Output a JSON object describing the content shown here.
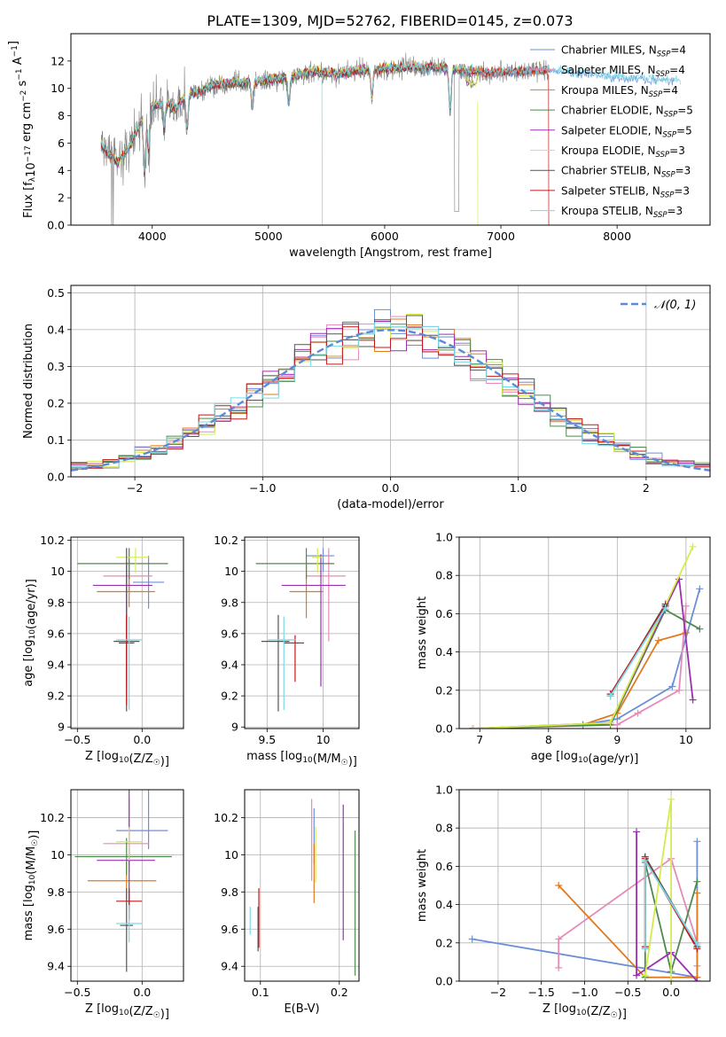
{
  "figure_title": "PLATE=1309, MJD=52762, FIBERID=0145, z=0.073",
  "series_styles": [
    {
      "name": "Chabrier MILES",
      "nssp": "4",
      "color": "#6b8fd6"
    },
    {
      "name": "Salpeter MILES",
      "nssp": "4",
      "color": "#e68ab8"
    },
    {
      "name": "Kroupa MILES",
      "nssp": "4",
      "color": "#e07a1f"
    },
    {
      "name": "Chabrier ELODIE",
      "nssp": "5",
      "color": "#4e8a4e"
    },
    {
      "name": "Salpeter ELODIE",
      "nssp": "5",
      "color": "#9b30b0"
    },
    {
      "name": "Kroupa ELODIE",
      "nssp": "3",
      "color": "#d4ec4a"
    },
    {
      "name": "Chabrier STELIB",
      "nssp": "3",
      "color": "#555555"
    },
    {
      "name": "Salpeter STELIB",
      "nssp": "3",
      "color": "#c01a1a"
    },
    {
      "name": "Kroupa STELIB",
      "nssp": "3",
      "color": "#7ad9e6"
    }
  ],
  "chart_data": [
    {
      "id": "spectrum",
      "type": "line",
      "xlabel": "wavelength [Angstrom, rest frame]",
      "ylabel": "Flux [f_λ10^-17 erg cm^-2 s^-1 A^-1]",
      "xlim": [
        3300,
        8800
      ],
      "ylim": [
        0,
        14
      ],
      "xticks": [
        4000,
        5000,
        6000,
        7000,
        8000
      ],
      "yticks": [
        0,
        2,
        4,
        6,
        8,
        10,
        12
      ],
      "legend_position": "right",
      "data_color": "#808080",
      "continuum": {
        "x": [
          3560,
          3620,
          3700,
          3800,
          3900,
          4000,
          4100,
          4200,
          4300,
          4400,
          4500,
          4600,
          4800,
          5000,
          5200,
          5400,
          5600,
          5800,
          6000,
          6200,
          6400,
          6600,
          6800,
          7000,
          7200,
          7400,
          7600,
          7800,
          8000,
          8200,
          8400,
          8600,
          8800
        ],
        "y": [
          5.8,
          5.2,
          4.6,
          5.6,
          7.5,
          8.6,
          9.0,
          8.4,
          9.6,
          9.6,
          10.2,
          10.3,
          10.4,
          10.6,
          10.8,
          11.2,
          11.0,
          11.3,
          11.4,
          11.5,
          11.5,
          11.4,
          11.1,
          11.2,
          11.2,
          11.3,
          11.1,
          11.0,
          10.8,
          10.7,
          10.6,
          10.5,
          10.4
        ]
      }
    },
    {
      "id": "residuals",
      "type": "histogram",
      "xlabel": "(data-model)/error",
      "ylabel": "Normed distribution",
      "xlim": [
        -2.5,
        2.5
      ],
      "ylim": [
        0,
        0.52
      ],
      "xticks": [
        -2,
        -1,
        0,
        1,
        2
      ],
      "yticks": [
        0.0,
        0.1,
        0.2,
        0.3,
        0.4,
        0.5
      ],
      "grid": true,
      "legend_position": "top-right",
      "reference_label": "𝒩(0, 1)",
      "reference_color": "#5b8bd8"
    },
    {
      "id": "age_vs_Z",
      "type": "errorbar",
      "xlabel": "Z [log10(Z/Z☉)]",
      "ylabel": "age  [log10(age/yr)]",
      "xlim": [
        -0.55,
        0.32
      ],
      "ylim": [
        8.99,
        10.22
      ],
      "xticks": [
        -0.5,
        0.0
      ],
      "yticks": [
        9.0,
        9.2,
        9.4,
        9.6,
        9.8,
        10.0,
        10.2
      ],
      "grid": true,
      "points": [
        {
          "s": 0,
          "x": 0.05,
          "y": 9.93,
          "xerr": [
            0.12,
            0.12
          ],
          "yerr": [
            0.17,
            0.17
          ]
        },
        {
          "s": 1,
          "x": -0.1,
          "y": 9.97,
          "xerr": [
            0.2,
            0.18
          ],
          "yerr": [
            0.1,
            0.1
          ]
        },
        {
          "s": 2,
          "x": -0.1,
          "y": 9.87,
          "xerr": [
            0.25,
            0.2
          ],
          "yerr": [
            0.1,
            0.1
          ]
        },
        {
          "s": 3,
          "x": -0.1,
          "y": 10.05,
          "xerr": [
            0.4,
            0.3
          ],
          "yerr": [
            0.1,
            0.1
          ]
        },
        {
          "s": 4,
          "x": -0.12,
          "y": 9.91,
          "xerr": [
            0.26,
            0.2
          ],
          "yerr": [
            0.65,
            0.15
          ]
        },
        {
          "s": 5,
          "x": -0.05,
          "y": 10.09,
          "xerr": [
            0.15,
            0.1
          ],
          "yerr": [
            0.1,
            0.06
          ]
        },
        {
          "s": 6,
          "x": -0.12,
          "y": 9.55,
          "xerr": [
            0.1,
            0.1
          ],
          "yerr": [
            0.45,
            0.6
          ]
        },
        {
          "s": 7,
          "x": -0.12,
          "y": 9.54,
          "xerr": [
            0.06,
            0.06
          ],
          "yerr": [
            0.4,
            0.18
          ]
        },
        {
          "s": 8,
          "x": -0.1,
          "y": 9.56,
          "xerr": [
            0.1,
            0.1
          ],
          "yerr": [
            0.45,
            0.15
          ]
        }
      ]
    },
    {
      "id": "age_vs_mass",
      "type": "errorbar",
      "xlabel": "mass [log10(M/M☉)]",
      "ylabel": "",
      "xlim": [
        9.3,
        10.32
      ],
      "ylim": [
        8.99,
        10.22
      ],
      "xticks": [
        9.5,
        10.0
      ],
      "yticks": [
        9.0,
        9.2,
        9.4,
        9.6,
        9.8,
        10.0,
        10.2
      ],
      "grid": true,
      "points": [
        {
          "s": 0,
          "x": 10.0,
          "y": 10.1,
          "xerr": [
            0.15,
            0.1
          ],
          "yerr": [
            0.1,
            0.05
          ]
        },
        {
          "s": 1,
          "x": 10.05,
          "y": 9.97,
          "xerr": [
            0.2,
            0.15
          ],
          "yerr": [
            0.42,
            0.18
          ]
        },
        {
          "s": 2,
          "x": 9.85,
          "y": 9.87,
          "xerr": [
            0.15,
            0.15
          ],
          "yerr": [
            0.17,
            0.17
          ]
        },
        {
          "s": 3,
          "x": 9.85,
          "y": 10.05,
          "xerr": [
            0.45,
            0.25
          ],
          "yerr": [
            0.1,
            0.1
          ]
        },
        {
          "s": 4,
          "x": 9.98,
          "y": 9.91,
          "xerr": [
            0.35,
            0.22
          ],
          "yerr": [
            0.65,
            0.2
          ]
        },
        {
          "s": 5,
          "x": 9.95,
          "y": 10.09,
          "xerr": [
            0.05,
            0.05
          ],
          "yerr": [
            0.1,
            0.06
          ]
        },
        {
          "s": 6,
          "x": 9.6,
          "y": 9.55,
          "xerr": [
            0.15,
            0.1
          ],
          "yerr": [
            0.45,
            0.17
          ]
        },
        {
          "s": 7,
          "x": 9.75,
          "y": 9.54,
          "xerr": [
            0.1,
            0.08
          ],
          "yerr": [
            0.25,
            0.05
          ]
        },
        {
          "s": 8,
          "x": 9.65,
          "y": 9.56,
          "xerr": [
            0.15,
            0.1
          ],
          "yerr": [
            0.45,
            0.15
          ]
        }
      ]
    },
    {
      "id": "massweight_vs_age",
      "type": "line",
      "xlabel": "age  [log10(age/yr)]",
      "ylabel": "mass weight",
      "xlim": [
        6.7,
        10.35
      ],
      "ylim": [
        0,
        1
      ],
      "xticks": [
        7,
        8,
        9,
        10
      ],
      "yticks": [
        0.0,
        0.2,
        0.4,
        0.6,
        0.8,
        1.0
      ],
      "grid": true,
      "series": [
        {
          "s": 0,
          "x": [
            6.9,
            8.5,
            9.0,
            9.8,
            10.2
          ],
          "y": [
            0.0,
            0.02,
            0.05,
            0.22,
            0.73
          ]
        },
        {
          "s": 1,
          "x": [
            6.9,
            9.0,
            9.3,
            9.9,
            10.0
          ],
          "y": [
            0.0,
            0.02,
            0.08,
            0.2,
            0.64
          ]
        },
        {
          "s": 2,
          "x": [
            6.9,
            8.5,
            9.0,
            9.6,
            10.0
          ],
          "y": [
            0.0,
            0.02,
            0.08,
            0.46,
            0.5
          ]
        },
        {
          "s": 3,
          "x": [
            6.9,
            8.9,
            9.7,
            10.2
          ],
          "y": [
            0.0,
            0.02,
            0.62,
            0.52
          ]
        },
        {
          "s": 4,
          "x": [
            6.9,
            8.9,
            9.9,
            10.1
          ],
          "y": [
            0.0,
            0.03,
            0.78,
            0.15
          ]
        },
        {
          "s": 5,
          "x": [
            6.9,
            8.9,
            10.1
          ],
          "y": [
            0.0,
            0.03,
            0.95
          ]
        },
        {
          "s": 6,
          "x": [
            8.9,
            9.7
          ],
          "y": [
            0.17,
            0.65
          ]
        },
        {
          "s": 7,
          "x": [
            8.9,
            9.7
          ],
          "y": [
            0.18,
            0.64
          ]
        },
        {
          "s": 8,
          "x": [
            8.9,
            9.7
          ],
          "y": [
            0.17,
            0.63
          ]
        }
      ]
    },
    {
      "id": "mass_vs_Z",
      "type": "errorbar",
      "xlabel": "Z [log10(Z/Z☉)]",
      "ylabel": "mass [log10(M/M☉)]",
      "xlim": [
        -0.55,
        0.32
      ],
      "ylim": [
        9.32,
        10.35
      ],
      "xticks": [
        -0.5,
        0.0
      ],
      "yticks": [
        9.4,
        9.6,
        9.8,
        10.0,
        10.2
      ],
      "grid": true,
      "points": [
        {
          "s": 0,
          "x": 0.05,
          "y": 10.13,
          "xerr": [
            0.25,
            0.15
          ],
          "yerr": [
            0.1,
            0.36
          ]
        },
        {
          "s": 1,
          "x": -0.1,
          "y": 10.06,
          "xerr": [
            0.2,
            0.15
          ],
          "yerr": [
            0.15,
            0.24
          ]
        },
        {
          "s": 2,
          "x": -0.12,
          "y": 9.86,
          "xerr": [
            0.3,
            0.23
          ],
          "yerr": [
            0.1,
            0.1
          ]
        },
        {
          "s": 3,
          "x": -0.12,
          "y": 9.99,
          "xerr": [
            0.4,
            0.35
          ],
          "yerr": [
            0.1,
            0.1
          ]
        },
        {
          "s": 4,
          "x": -0.1,
          "y": 9.97,
          "xerr": [
            0.25,
            0.2
          ],
          "yerr": [
            0.27,
            0.43
          ]
        },
        {
          "s": 5,
          "x": -0.1,
          "y": 10.07,
          "xerr": [
            0.1,
            0.1
          ],
          "yerr": [
            0.1,
            0.08
          ]
        },
        {
          "s": 6,
          "x": -0.12,
          "y": 9.62,
          "xerr": [
            0.05,
            0.05
          ],
          "yerr": [
            0.25,
            0.2
          ]
        },
        {
          "s": 7,
          "x": -0.1,
          "y": 9.75,
          "xerr": [
            0.1,
            0.1
          ],
          "yerr": [
            0.1,
            0.07
          ]
        },
        {
          "s": 8,
          "x": -0.1,
          "y": 9.63,
          "xerr": [
            0.1,
            0.1
          ],
          "yerr": [
            0.1,
            0.1
          ]
        }
      ]
    },
    {
      "id": "mass_vs_ebv",
      "type": "errorbar",
      "xlabel": "E(B-V)",
      "ylabel": "",
      "xlim": [
        0.08,
        0.225
      ],
      "ylim": [
        9.32,
        10.35
      ],
      "xticks": [
        0.1,
        0.2
      ],
      "yticks": [
        9.4,
        9.6,
        9.8,
        10.0,
        10.2
      ],
      "grid": true,
      "points": [
        {
          "s": 0,
          "x": 0.168,
          "y": 10.1,
          "xerr": [
            0,
            0
          ],
          "yerr": [
            0.15,
            0.15
          ]
        },
        {
          "s": 1,
          "x": 0.165,
          "y": 10.06,
          "xerr": [
            0,
            0
          ],
          "yerr": [
            0.2,
            0.24
          ]
        },
        {
          "s": 2,
          "x": 0.168,
          "y": 9.86,
          "xerr": [
            0,
            0
          ],
          "yerr": [
            0.12,
            0.2
          ]
        },
        {
          "s": 3,
          "x": 0.22,
          "y": 9.75,
          "xerr": [
            0,
            0
          ],
          "yerr": [
            0.4,
            0.38
          ]
        },
        {
          "s": 4,
          "x": 0.205,
          "y": 9.92,
          "xerr": [
            0,
            0
          ],
          "yerr": [
            0.38,
            0.35
          ]
        },
        {
          "s": 5,
          "x": 0.17,
          "y": 10.05,
          "xerr": [
            0,
            0
          ],
          "yerr": [
            0.2,
            0.1
          ]
        },
        {
          "s": 6,
          "x": 0.097,
          "y": 9.65,
          "xerr": [
            0,
            0
          ],
          "yerr": [
            0.17,
            0.07
          ]
        },
        {
          "s": 7,
          "x": 0.098,
          "y": 9.67,
          "xerr": [
            0,
            0
          ],
          "yerr": [
            0.17,
            0.15
          ]
        },
        {
          "s": 8,
          "x": 0.087,
          "y": 9.62,
          "xerr": [
            0,
            0
          ],
          "yerr": [
            0.05,
            0.1
          ]
        }
      ]
    },
    {
      "id": "massweight_vs_Z",
      "type": "line",
      "xlabel": "Z [log10(Z/Z☉)]",
      "ylabel": "mass weight",
      "xlim": [
        -2.45,
        0.45
      ],
      "ylim": [
        0,
        1
      ],
      "xticks": [
        -2.0,
        -1.5,
        -1.0,
        -0.5,
        0.0
      ],
      "yticks": [
        0.0,
        0.2,
        0.4,
        0.6,
        0.8,
        1.0
      ],
      "grid": true,
      "series": [
        {
          "s": 0,
          "x": [
            -2.3,
            0.3,
            0.3
          ],
          "y": [
            0.22,
            0.02,
            0.73
          ]
        },
        {
          "s": 1,
          "x": [
            -1.3,
            -1.3,
            0.0,
            0.3,
            0.3
          ],
          "y": [
            0.07,
            0.22,
            0.64,
            0.2,
            0.08
          ]
        },
        {
          "s": 2,
          "x": [
            -1.3,
            -0.3,
            0.3,
            0.3
          ],
          "y": [
            0.5,
            0.02,
            0.02,
            0.46
          ]
        },
        {
          "s": 3,
          "x": [
            -0.3,
            -0.3,
            0.0,
            0.3
          ],
          "y": [
            0.02,
            0.62,
            0.05,
            0.52
          ]
        },
        {
          "s": 4,
          "x": [
            -0.4,
            -0.4,
            0.0,
            0.3
          ],
          "y": [
            0.78,
            0.03,
            0.15,
            0.0
          ]
        },
        {
          "s": 5,
          "x": [
            -0.3,
            0.0,
            0.0
          ],
          "y": [
            0.03,
            0.95,
            0.0
          ]
        },
        {
          "s": 6,
          "x": [
            -0.3,
            -0.3,
            0.3
          ],
          "y": [
            0.17,
            0.65,
            0.18
          ]
        },
        {
          "s": 7,
          "x": [
            -0.3,
            -0.3,
            0.3
          ],
          "y": [
            0.18,
            0.64,
            0.17
          ]
        },
        {
          "s": 8,
          "x": [
            -0.3,
            -0.3,
            0.3
          ],
          "y": [
            0.17,
            0.63,
            0.19
          ]
        }
      ]
    }
  ]
}
